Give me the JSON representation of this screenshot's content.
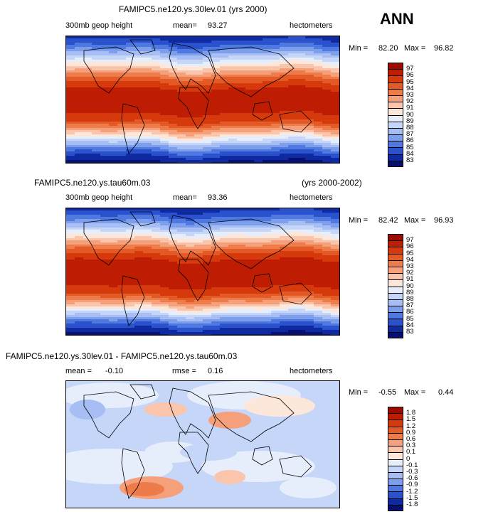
{
  "chart_data": [
    {
      "type": "heatmap",
      "title": "FAMIPC5.ne120.ys.30lev.01 (yrs 2000)",
      "season": "ANN",
      "variable": "300mb geop height",
      "mean_label": "mean=",
      "mean": "93.27",
      "units": "hectometers",
      "min_label": "Min =",
      "min": "82.20",
      "max_label": "Max =",
      "max": "96.82",
      "colorbar_levels": [
        "97",
        "96",
        "95",
        "94",
        "93",
        "92",
        "91",
        "90",
        "89",
        "88",
        "87",
        "86",
        "85",
        "84",
        "83"
      ],
      "colorbar_colors": [
        "#9e0a00",
        "#bf1d03",
        "#d63a0c",
        "#e45a26",
        "#ee7c4a",
        "#f5a07a",
        "#fac5ab",
        "#fde6da",
        "#e6eefc",
        "#c6d6f8",
        "#a6bef3",
        "#7c9eeb",
        "#4f78e0",
        "#2a52cc",
        "#0f2aa0",
        "#061070"
      ],
      "zonal_profile": {
        "lat": [
          90,
          75,
          60,
          45,
          30,
          15,
          0,
          -15,
          -30,
          -45,
          -60,
          -75,
          -90
        ],
        "value": [
          83.5,
          85.5,
          88.5,
          91.5,
          94.5,
          96.2,
          96.7,
          96.3,
          95.2,
          92.0,
          88.0,
          84.5,
          82.5
        ]
      }
    },
    {
      "type": "heatmap",
      "title": "FAMIPC5.ne120.ys.tau60m.03",
      "years": "(yrs 2000-2002)",
      "variable": "300mb geop height",
      "mean_label": "mean=",
      "mean": "93.36",
      "units": "hectometers",
      "min_label": "Min =",
      "min": "82.42",
      "max_label": "Max =",
      "max": "96.93",
      "colorbar_levels": [
        "97",
        "96",
        "95",
        "94",
        "93",
        "92",
        "91",
        "90",
        "89",
        "88",
        "87",
        "86",
        "85",
        "84",
        "83"
      ],
      "colorbar_colors": [
        "#9e0a00",
        "#bf1d03",
        "#d63a0c",
        "#e45a26",
        "#ee7c4a",
        "#f5a07a",
        "#fac5ab",
        "#fde6da",
        "#e6eefc",
        "#c6d6f8",
        "#a6bef3",
        "#7c9eeb",
        "#4f78e0",
        "#2a52cc",
        "#0f2aa0",
        "#061070"
      ],
      "zonal_profile": {
        "lat": [
          90,
          75,
          60,
          45,
          30,
          15,
          0,
          -15,
          -30,
          -45,
          -60,
          -75,
          -90
        ],
        "value": [
          83.6,
          85.6,
          88.6,
          91.6,
          94.6,
          96.3,
          96.8,
          96.4,
          95.3,
          92.1,
          88.1,
          84.6,
          82.6
        ]
      }
    },
    {
      "type": "heatmap",
      "title": "FAMIPC5.ne120.ys.30lev.01 - FAMIPC5.ne120.ys.tau60m.03",
      "mean_label": "mean =",
      "mean": "-0.10",
      "rmse_label": "rmse =",
      "rmse": "0.16",
      "units": "hectometers",
      "min_label": "Min =",
      "min": "-0.55",
      "max_label": "Max =",
      "max": "0.44",
      "colorbar_levels": [
        "1.8",
        "1.5",
        "1.2",
        "0.9",
        "0.6",
        "0.3",
        "0.1",
        "0",
        "-0.1",
        "-0.3",
        "-0.6",
        "-0.9",
        "-1.2",
        "-1.5",
        "-1.8"
      ],
      "colorbar_colors": [
        "#9e0a00",
        "#bf1d03",
        "#d63a0c",
        "#e45a26",
        "#ee7c4a",
        "#f5a07a",
        "#fac5ab",
        "#fde6da",
        "#e6eefc",
        "#c6d6f8",
        "#a6bef3",
        "#7c9eeb",
        "#4f78e0",
        "#2a52cc",
        "#0f2aa0",
        "#061070"
      ]
    }
  ]
}
